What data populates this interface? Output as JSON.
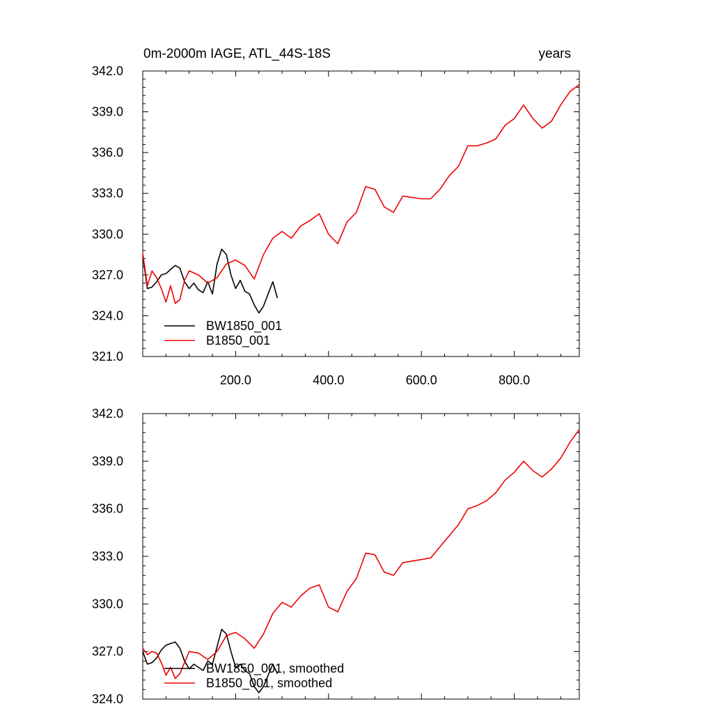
{
  "chart_data": [
    {
      "type": "line",
      "title": "0m-2000m IAGE, ATL_44S-18S",
      "units": "years",
      "xlim": [
        0,
        940
      ],
      "ylim": [
        321.0,
        342.0
      ],
      "y_ticks": [
        "321.0",
        "324.0",
        "327.0",
        "330.0",
        "333.0",
        "336.0",
        "339.0",
        "342.0"
      ],
      "x_ticks": [
        "200.0",
        "400.0",
        "600.0",
        "800.0"
      ],
      "legend_position": "bottom-left",
      "colors": {
        "BW1850_001": "#000000",
        "B1850_001": "#ee0000"
      },
      "series": [
        {
          "name": "BW1850_001",
          "color": "#000000",
          "x": [
            0,
            10,
            20,
            30,
            40,
            50,
            60,
            70,
            80,
            90,
            100,
            110,
            120,
            130,
            140,
            150,
            160,
            170,
            180,
            190,
            200,
            210,
            220,
            230,
            240,
            250,
            260,
            270,
            280,
            290
          ],
          "y": [
            328.4,
            326.0,
            326.1,
            326.5,
            327.0,
            327.1,
            327.4,
            327.7,
            327.5,
            326.5,
            326.0,
            326.4,
            325.9,
            325.7,
            326.5,
            325.6,
            327.8,
            328.9,
            328.5,
            327.0,
            326.0,
            326.6,
            325.8,
            325.6,
            324.8,
            324.2,
            324.7,
            325.6,
            326.5,
            325.3
          ]
        },
        {
          "name": "B1850_001",
          "color": "#ee0000",
          "x": [
            0,
            10,
            20,
            30,
            40,
            50,
            60,
            70,
            80,
            90,
            100,
            120,
            140,
            160,
            180,
            200,
            220,
            240,
            260,
            280,
            300,
            320,
            340,
            360,
            380,
            400,
            420,
            440,
            460,
            480,
            500,
            520,
            540,
            560,
            580,
            600,
            620,
            640,
            660,
            680,
            700,
            720,
            740,
            760,
            780,
            800,
            820,
            840,
            860,
            880,
            900,
            920,
            940
          ],
          "y": [
            328.6,
            326.2,
            327.3,
            326.8,
            326.0,
            325.0,
            326.2,
            324.9,
            325.2,
            326.6,
            327.3,
            327.0,
            326.4,
            326.8,
            327.8,
            328.1,
            327.7,
            326.7,
            328.5,
            329.7,
            330.2,
            329.7,
            330.6,
            331.0,
            331.5,
            330.0,
            329.3,
            330.9,
            331.6,
            333.5,
            333.3,
            332.0,
            331.6,
            332.8,
            332.7,
            332.6,
            332.6,
            333.3,
            334.3,
            335.0,
            336.5,
            336.5,
            336.7,
            337.0,
            338.0,
            338.5,
            339.5,
            338.5,
            337.8,
            338.3,
            339.5,
            340.5,
            341.0
          ]
        }
      ]
    },
    {
      "type": "line",
      "title": "",
      "xlim": [
        0,
        940
      ],
      "ylim": [
        324.0,
        342.0
      ],
      "y_ticks": [
        "324.0",
        "327.0",
        "330.0",
        "333.0",
        "336.0",
        "339.0",
        "342.0"
      ],
      "x_ticks": [],
      "legend_position": "bottom-left",
      "series": [
        {
          "name": "BW1850_001, smoothed",
          "color": "#000000",
          "x": [
            0,
            10,
            20,
            30,
            40,
            50,
            60,
            70,
            80,
            90,
            100,
            110,
            120,
            130,
            140,
            150,
            160,
            170,
            180,
            190,
            200,
            210,
            220,
            230,
            240,
            250,
            260,
            270,
            280,
            290
          ],
          "y": [
            327.0,
            326.2,
            326.3,
            326.6,
            327.1,
            327.4,
            327.5,
            327.6,
            327.2,
            326.4,
            325.9,
            326.2,
            326.0,
            325.8,
            326.4,
            326.2,
            327.3,
            328.4,
            328.1,
            327.0,
            326.0,
            326.2,
            325.8,
            325.6,
            324.8,
            324.4,
            324.8,
            325.5,
            326.2,
            325.6
          ]
        },
        {
          "name": "B1850_001, smoothed",
          "color": "#ee0000",
          "x": [
            0,
            10,
            20,
            30,
            40,
            50,
            60,
            70,
            80,
            90,
            100,
            120,
            140,
            160,
            180,
            200,
            220,
            240,
            260,
            280,
            300,
            320,
            340,
            360,
            380,
            400,
            420,
            440,
            460,
            480,
            500,
            520,
            540,
            560,
            580,
            600,
            620,
            640,
            660,
            680,
            700,
            720,
            740,
            760,
            780,
            800,
            820,
            840,
            860,
            880,
            900,
            920,
            940
          ],
          "y": [
            327.2,
            326.8,
            327.0,
            326.9,
            326.3,
            325.5,
            326.0,
            325.3,
            325.6,
            326.3,
            327.0,
            326.9,
            326.5,
            327.0,
            328.0,
            328.2,
            327.8,
            327.2,
            328.1,
            329.4,
            330.1,
            329.8,
            330.5,
            331.0,
            331.2,
            329.8,
            329.5,
            330.8,
            331.6,
            333.2,
            333.1,
            332.0,
            331.8,
            332.6,
            332.7,
            332.8,
            332.9,
            333.6,
            334.3,
            335.0,
            336.0,
            336.2,
            336.5,
            337.0,
            337.8,
            338.3,
            339.0,
            338.4,
            338.0,
            338.5,
            339.2,
            340.2,
            341.0
          ]
        }
      ]
    }
  ]
}
